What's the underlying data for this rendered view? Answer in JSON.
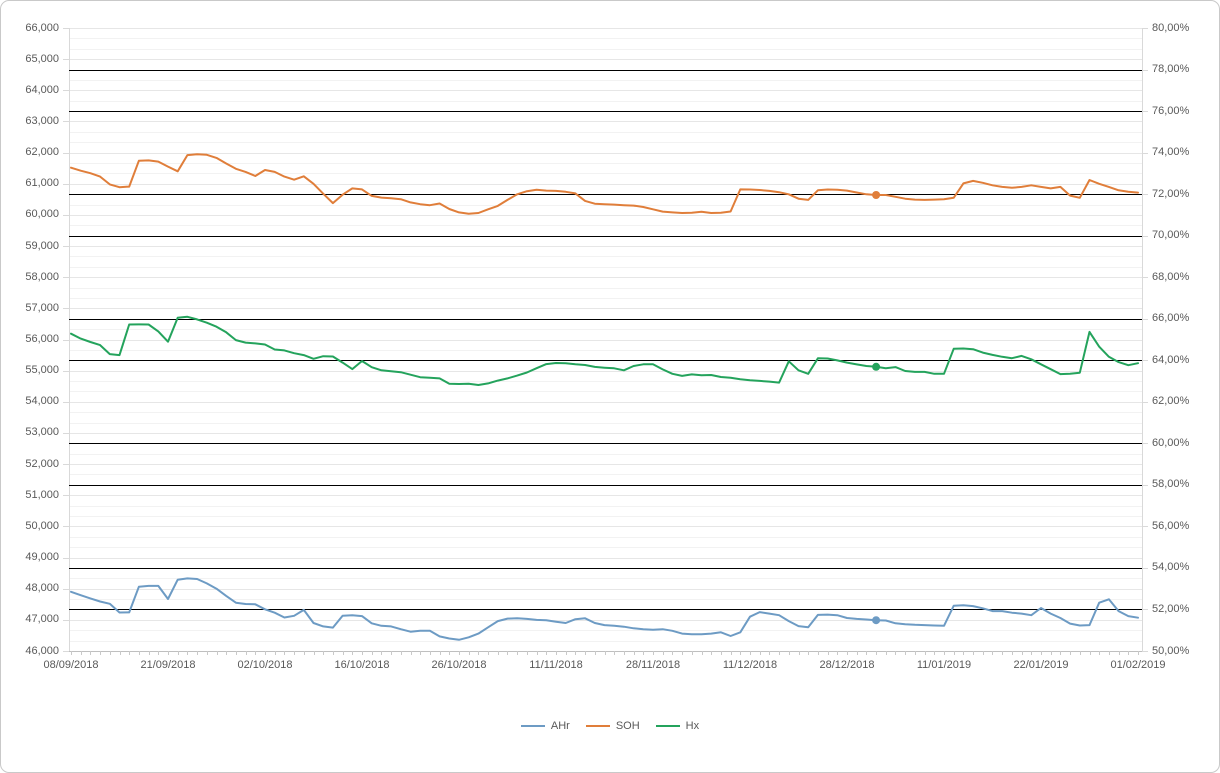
{
  "chart_data": {
    "type": "line",
    "title": "",
    "grid": "on",
    "legend_position": "bottom",
    "x_axis": {
      "labels": [
        "08/09/2018",
        "21/09/2018",
        "02/10/2018",
        "16/10/2018",
        "26/10/2018",
        "11/11/2018",
        "28/11/2018",
        "11/12/2018",
        "28/12/2018",
        "11/01/2019",
        "22/01/2019",
        "01/02/2019"
      ],
      "label_every_n_points": 10,
      "num_points": 111
    },
    "left_axis": {
      "min": 46000,
      "max": 66000,
      "step": 1000,
      "labels": [
        "66,000",
        "65,000",
        "64,000",
        "63,000",
        "62,000",
        "61,000",
        "60,000",
        "59,000",
        "58,000",
        "57,000",
        "56,000",
        "55,000",
        "54,000",
        "53,000",
        "52,000",
        "51,000",
        "50,000",
        "49,000",
        "48,000",
        "47,000",
        "46,000"
      ]
    },
    "right_axis": {
      "min": 50,
      "max": 80,
      "step": 2,
      "labels": [
        "80,00%",
        "78,00%",
        "76,00%",
        "74,00%",
        "72,00%",
        "70,00%",
        "68,00%",
        "66,00%",
        "64,00%",
        "62,00%",
        "60,00%",
        "58,00%",
        "56,00%",
        "54,00%",
        "52,00%",
        "50,00%"
      ]
    },
    "black_line_percents": [
      78,
      76,
      72,
      70,
      66,
      64,
      60,
      58,
      54,
      52
    ],
    "marker_index": 83,
    "series": [
      {
        "name": "AHr",
        "color": "#6D9BC4",
        "axis": "left",
        "values": [
          47900,
          47790,
          47690,
          47590,
          47515,
          47235,
          47240,
          48065,
          48090,
          48090,
          47670,
          48290,
          48330,
          48310,
          48170,
          48000,
          47770,
          47550,
          47510,
          47500,
          47340,
          47230,
          47075,
          47130,
          47320,
          46900,
          46790,
          46750,
          47130,
          47150,
          47120,
          46890,
          46810,
          46790,
          46700,
          46620,
          46650,
          46650,
          46470,
          46400,
          46360,
          46440,
          46560,
          46760,
          46960,
          47040,
          47050,
          47030,
          47000,
          46990,
          46940,
          46900,
          47020,
          47050,
          46900,
          46830,
          46810,
          46780,
          46730,
          46700,
          46680,
          46700,
          46650,
          46560,
          46540,
          46540,
          46560,
          46600,
          46480,
          46600,
          47100,
          47250,
          47200,
          47150,
          46960,
          46800,
          46760,
          47160,
          47170,
          47150,
          47060,
          47030,
          47010,
          46990,
          46980,
          46890,
          46860,
          46840,
          46830,
          46820,
          46810,
          47450,
          47470,
          47440,
          47370,
          47280,
          47280,
          47230,
          47200,
          47150,
          47380,
          47200,
          47060,
          46880,
          46820,
          46830,
          47550,
          47660,
          47280,
          47120,
          47070
        ]
      },
      {
        "name": "SOH",
        "color": "#E07E3A",
        "axis": "right",
        "values": [
          61515,
          61420,
          61340,
          61230,
          60980,
          60890,
          60910,
          61740,
          61750,
          61710,
          61550,
          61400,
          61920,
          61950,
          61930,
          61830,
          61650,
          61480,
          61380,
          61250,
          61440,
          61380,
          61230,
          61130,
          61240,
          61000,
          60680,
          60380,
          60650,
          60850,
          60820,
          60610,
          60555,
          60535,
          60505,
          60400,
          60345,
          60310,
          60365,
          60190,
          60080,
          60040,
          60060,
          60180,
          60290,
          60480,
          60660,
          60760,
          60810,
          60780,
          60770,
          60740,
          60690,
          60450,
          60360,
          60345,
          60330,
          60310,
          60300,
          60255,
          60180,
          60105,
          60080,
          60060,
          60070,
          60100,
          60060,
          60070,
          60110,
          60820,
          60815,
          60800,
          60770,
          60730,
          60660,
          60520,
          60480,
          60790,
          60815,
          60810,
          60780,
          60720,
          60660,
          60640,
          60640,
          60580,
          60520,
          60490,
          60480,
          60490,
          60500,
          60550,
          61010,
          61090,
          61030,
          60950,
          60900,
          60870,
          60900,
          60950,
          60900,
          60850,
          60900,
          60620,
          60550,
          61120,
          61000,
          60900,
          60790,
          60740,
          60715
        ]
      },
      {
        "name": "Hx",
        "color": "#24A35C",
        "axis": "left",
        "values": [
          56185,
          56030,
          55920,
          55820,
          55530,
          55500,
          56480,
          56485,
          56480,
          56260,
          55930,
          56700,
          56730,
          56645,
          56540,
          56410,
          56230,
          55980,
          55900,
          55875,
          55840,
          55680,
          55650,
          55560,
          55500,
          55380,
          55465,
          55455,
          55260,
          55050,
          55310,
          55110,
          55010,
          54980,
          54950,
          54870,
          54790,
          54770,
          54750,
          54580,
          54570,
          54580,
          54540,
          54590,
          54680,
          54750,
          54840,
          54940,
          55080,
          55210,
          55245,
          55235,
          55205,
          55180,
          55120,
          55095,
          55075,
          55010,
          55150,
          55205,
          55205,
          55040,
          54900,
          54830,
          54880,
          54850,
          54860,
          54795,
          54775,
          54725,
          54690,
          54670,
          54650,
          54615,
          55300,
          55010,
          54900,
          55395,
          55390,
          55330,
          55260,
          55200,
          55150,
          55125,
          55080,
          55115,
          54990,
          54960,
          54960,
          54900,
          54900,
          55700,
          55710,
          55690,
          55580,
          55505,
          55445,
          55400,
          55475,
          55365,
          55205,
          55045,
          54890,
          54900,
          54935,
          56245,
          55770,
          55445,
          55275,
          55175,
          55240
        ]
      }
    ],
    "colors": {
      "axis_text": "#595959",
      "minor_grid": "#F2F2F2",
      "major_grid": "#E6E6E6",
      "plot_edge": "#D9D9D9",
      "black_line": "#000000",
      "x_axis_line": "#BFBFBF"
    }
  },
  "legend": {
    "items": [
      {
        "label": "AHr",
        "color": "#6D9BC4"
      },
      {
        "label": "SOH",
        "color": "#E07E3A"
      },
      {
        "label": "Hx",
        "color": "#24A35C"
      }
    ]
  }
}
